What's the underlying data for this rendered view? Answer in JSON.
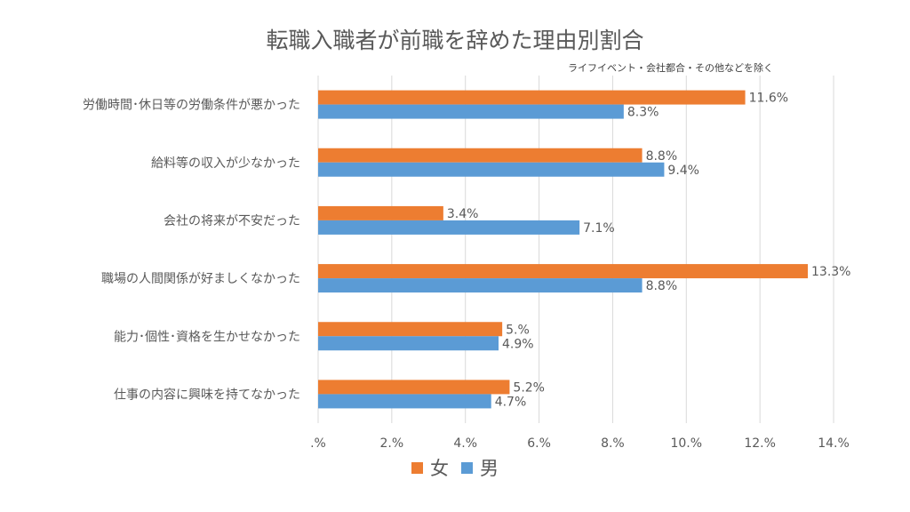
{
  "title": "転職入職者が前職を辞めた理由別割合",
  "subtitle": "ライフイベント・会社都合・その他などを除く",
  "colors": {
    "female": "#ED7D31",
    "male": "#5B9BD5",
    "grid": "#D9D9D9",
    "text": "#595959"
  },
  "chart_data": {
    "type": "bar",
    "orientation": "horizontal",
    "categories": [
      "労働時間･休日等の労働条件が悪かった",
      "給料等の収入が少なかった",
      "会社の将来が不安だった",
      "職場の人間関係が好ましくなかった",
      "能力･個性･資格を生かせなかった",
      "仕事の内容に興味を持てなかった"
    ],
    "series": [
      {
        "name": "女",
        "color": "#ED7D31",
        "values": [
          11.6,
          8.8,
          3.4,
          13.3,
          5.0,
          5.2
        ],
        "labels": [
          "11.6%",
          "8.8%",
          "3.4%",
          "13.3%",
          "5.%",
          "5.2%"
        ]
      },
      {
        "name": "男",
        "color": "#5B9BD5",
        "values": [
          8.3,
          9.4,
          7.1,
          8.8,
          4.9,
          4.7
        ],
        "labels": [
          "8.3%",
          "9.4%",
          "7.1%",
          "8.8%",
          "4.9%",
          "4.7%"
        ]
      }
    ],
    "xlim": [
      0,
      14
    ],
    "xticks": [
      ".%",
      "2.%",
      "4.%",
      "6.%",
      "8.%",
      "10.%",
      "12.%",
      "14.%"
    ],
    "grid": true,
    "legend": "bottom"
  }
}
